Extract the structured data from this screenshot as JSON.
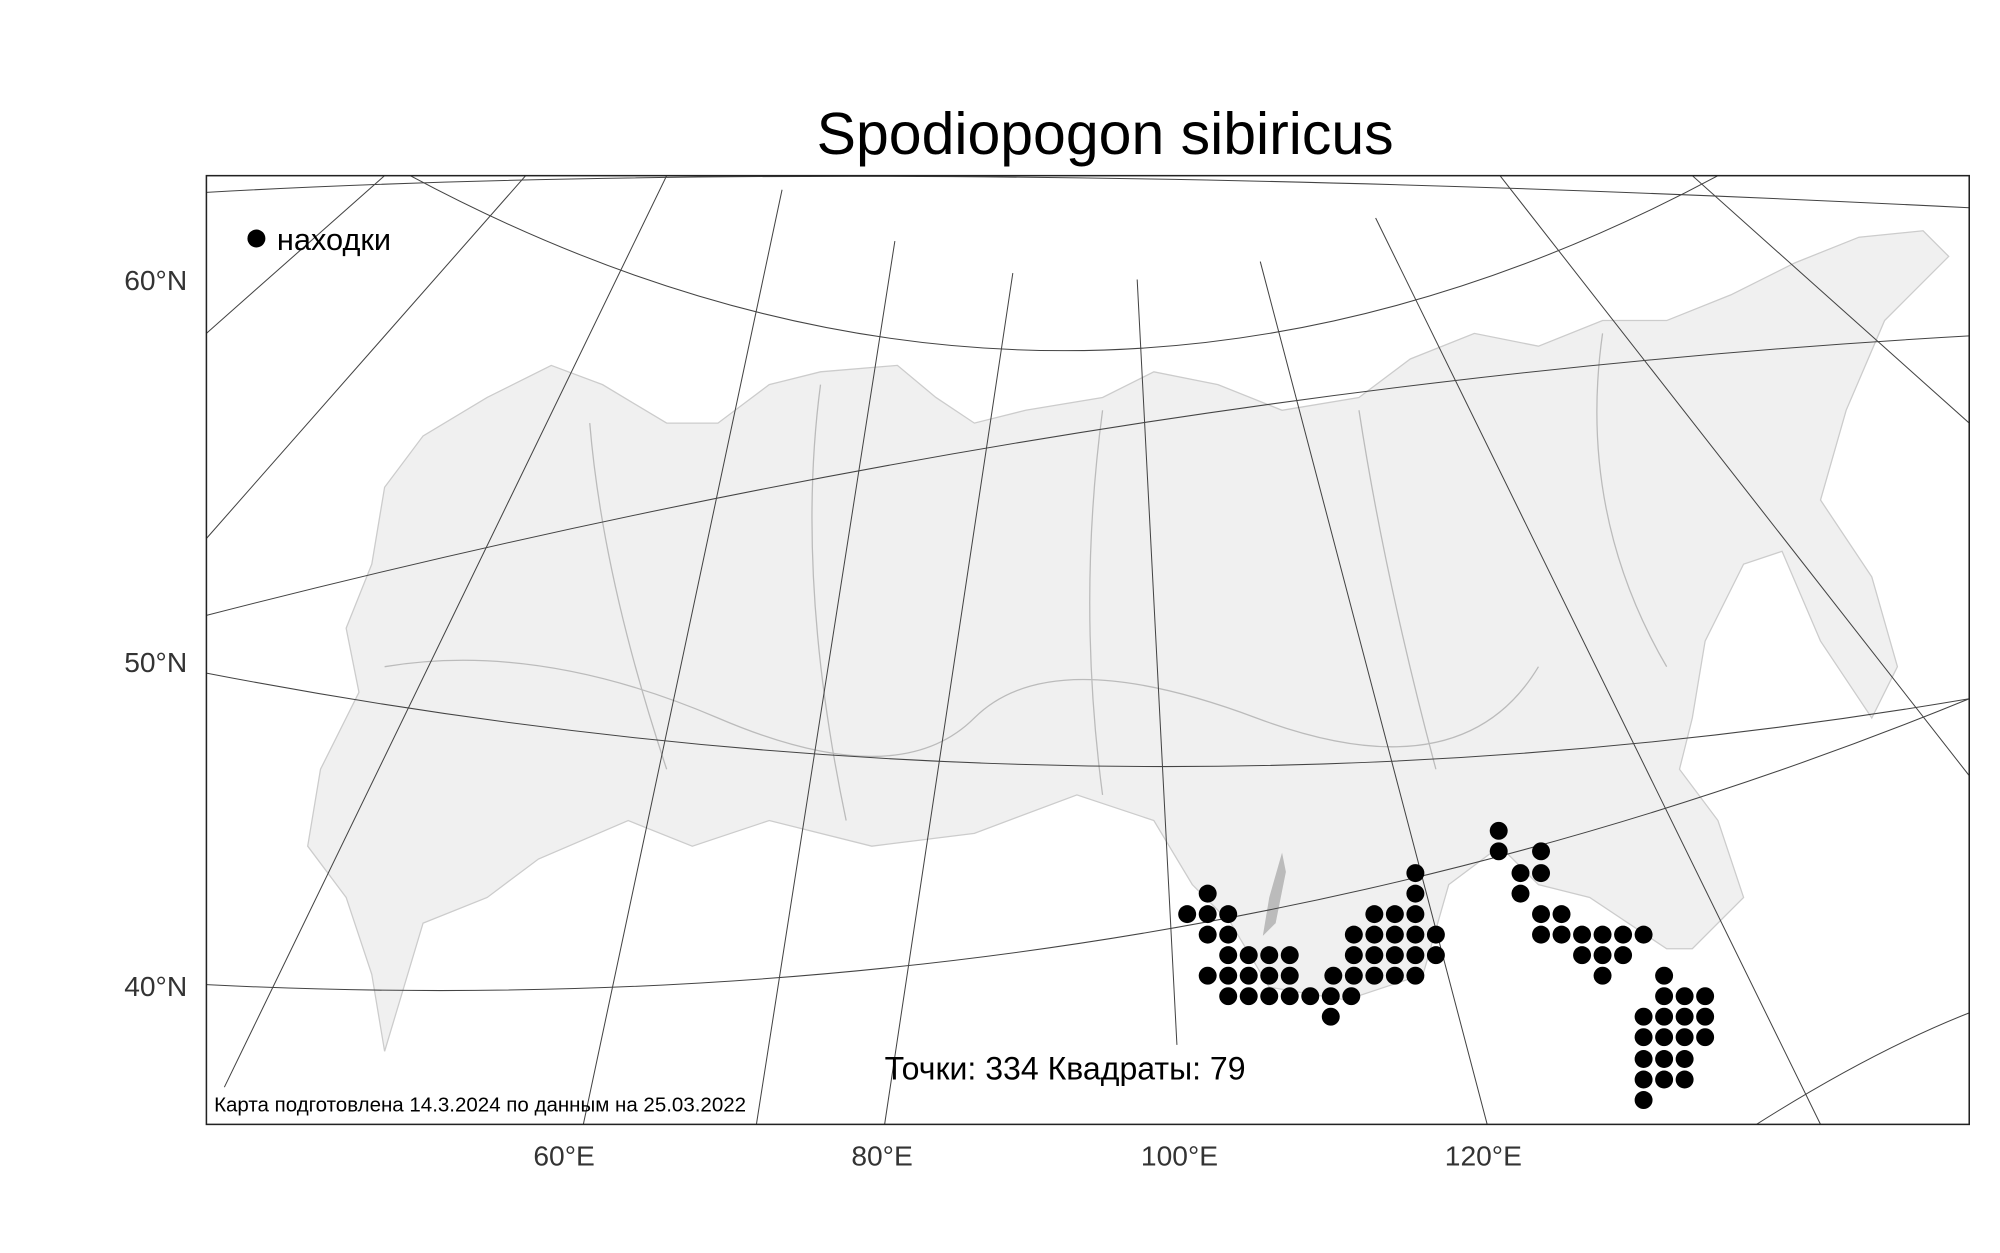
{
  "title": "Spodiopogon sibiricus",
  "legend": {
    "label": "находки"
  },
  "y_axis_labels": [
    "60°N",
    "50°N",
    "40°N"
  ],
  "x_axis_labels": [
    "60°E",
    "80°E",
    "100°E",
    "120°E"
  ],
  "stats": "Точки: 334 Квадраты: 79",
  "credit": "Карта подготовлена 14.3.2024 по данным на 25.03.2022"
}
